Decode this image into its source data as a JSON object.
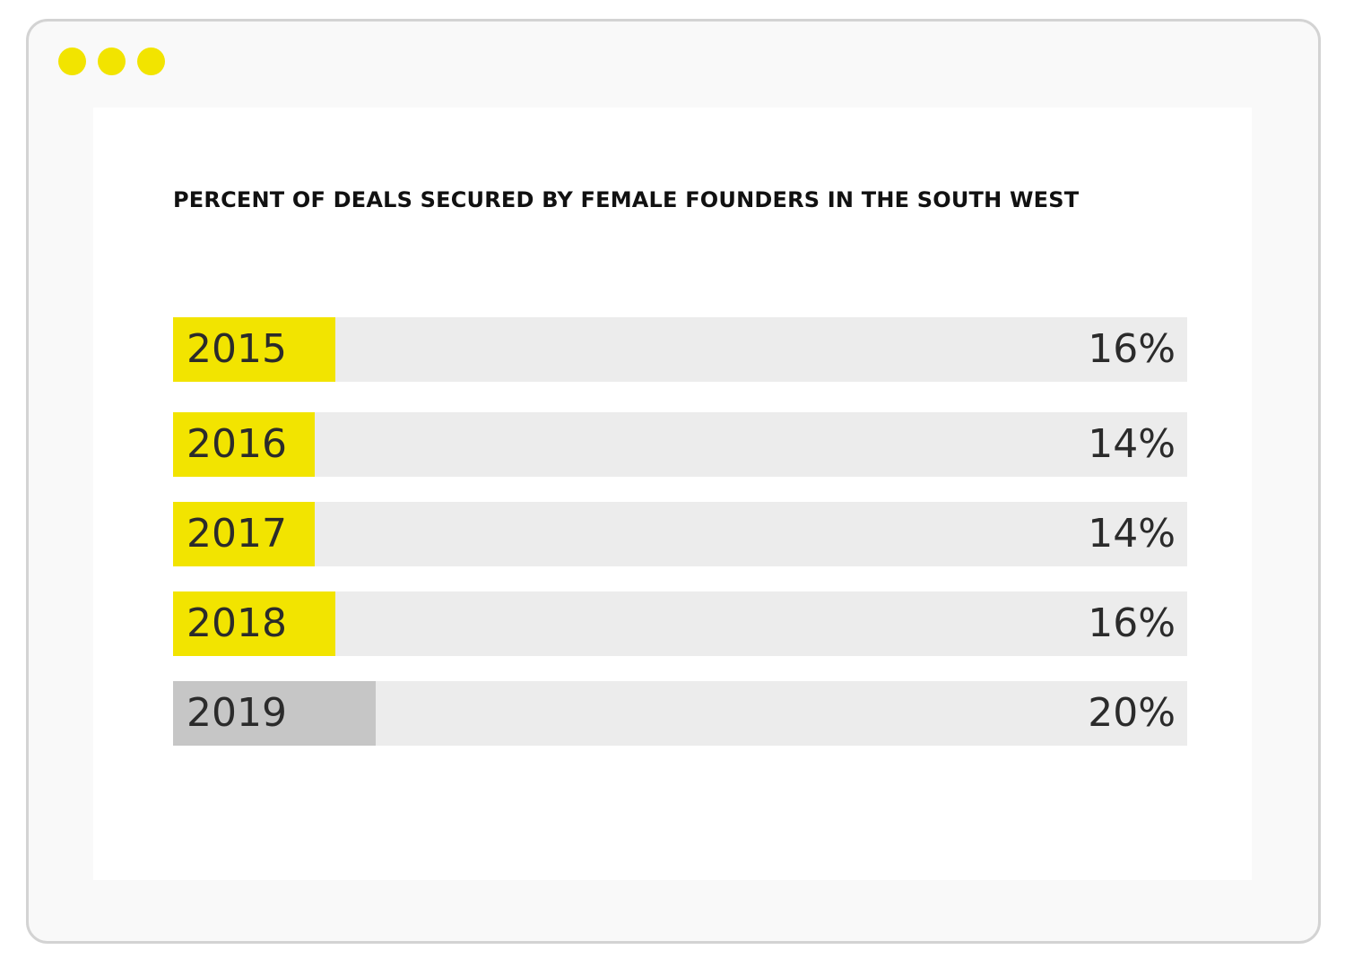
{
  "window": {
    "dot_color": "#f2e400"
  },
  "chart_data": {
    "type": "bar",
    "orientation": "horizontal",
    "title": "PERCENT OF DEALS SECURED BY FEMALE FOUNDERS IN THE SOUTH WEST",
    "categories": [
      "2015",
      "2016",
      "2017",
      "2018",
      "2019"
    ],
    "values": [
      16,
      14,
      14,
      16,
      20
    ],
    "value_labels": [
      "16%",
      "14%",
      "14%",
      "16%",
      "20%"
    ],
    "unit": "%",
    "xlim": [
      0,
      100
    ],
    "bar_colors": [
      "#f2e400",
      "#f2e400",
      "#f2e400",
      "#f2e400",
      "#c6c6c6"
    ],
    "track_color": "#ececec",
    "grid": false,
    "legend": "none"
  }
}
